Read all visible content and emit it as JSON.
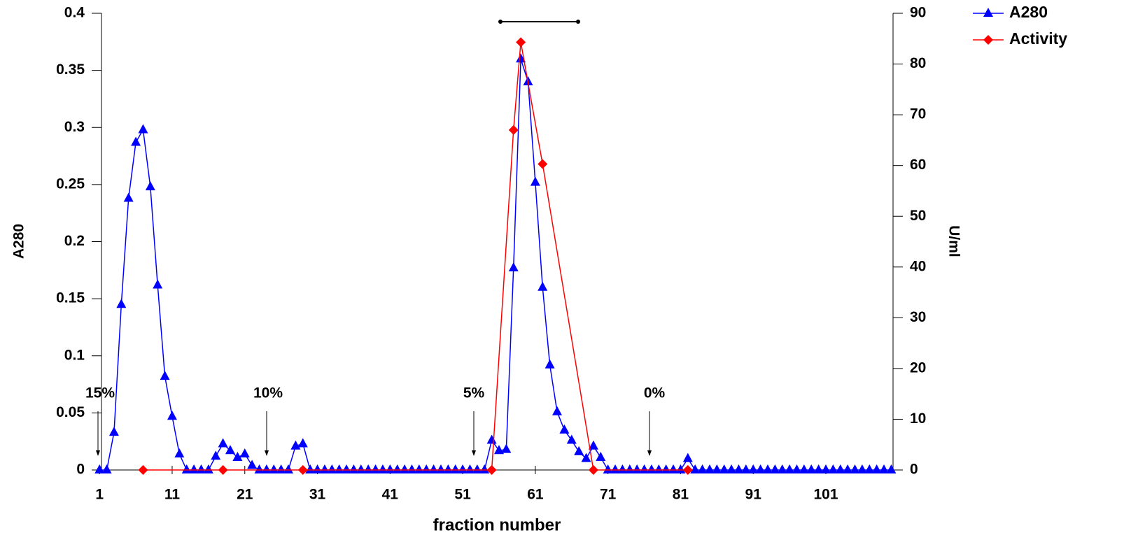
{
  "chart_data": {
    "type": "line",
    "xlabel": "fraction number",
    "ylabel": "A280",
    "y2label": "U/ml",
    "xlim": [
      0.5,
      110.25
    ],
    "xticks": [
      1,
      11,
      21,
      31,
      41,
      51,
      61,
      71,
      81,
      91,
      101
    ],
    "ylim": [
      0,
      0.4
    ],
    "yticks": [
      0,
      0.05,
      0.1,
      0.15,
      0.2,
      0.25,
      0.3,
      0.35,
      0.4
    ],
    "y2lim": [
      0,
      90
    ],
    "y2ticks": [
      0,
      10,
      20,
      30,
      40,
      50,
      60,
      70,
      80,
      90
    ],
    "legend": "top-right",
    "annotations": [
      "15%",
      "10%",
      "5%",
      "0%"
    ],
    "series": [
      {
        "name": "A280",
        "color": "#0000ff",
        "marker": "triangle",
        "x": [
          1,
          2,
          3,
          4,
          5,
          6,
          7,
          8,
          9,
          10,
          11,
          12,
          13,
          14,
          15,
          16,
          17,
          18,
          19,
          20,
          21,
          22,
          23,
          24,
          25,
          26,
          27,
          28,
          29,
          30,
          31,
          32,
          33,
          34,
          35,
          36,
          37,
          38,
          39,
          40,
          41,
          42,
          43,
          44,
          45,
          46,
          47,
          48,
          49,
          50,
          51,
          52,
          53,
          54,
          55,
          56,
          57,
          58,
          59,
          60,
          61,
          62,
          63,
          64,
          65,
          66,
          67,
          68,
          69,
          70,
          71,
          72,
          73,
          74,
          75,
          76,
          77,
          78,
          79,
          80,
          81,
          82,
          83,
          84,
          85,
          86,
          87,
          88,
          89,
          90,
          91,
          92,
          93,
          94,
          95,
          96,
          97,
          98,
          99,
          100,
          101,
          102,
          103,
          104,
          105,
          106,
          107,
          108,
          109,
          110
        ],
        "values": [
          0,
          0,
          0.033,
          0.145,
          0.238,
          0.287,
          0.298,
          0.248,
          0.162,
          0.082,
          0.047,
          0.014,
          0,
          0,
          0,
          0,
          0.012,
          0.023,
          0.017,
          0.011,
          0.014,
          0.004,
          0,
          0,
          0,
          0,
          0,
          0.021,
          0.023,
          0,
          0,
          0,
          0,
          0,
          0,
          0,
          0,
          0,
          0,
          0,
          0,
          0,
          0,
          0,
          0,
          0,
          0,
          0,
          0,
          0,
          0,
          0,
          0,
          0,
          0.026,
          0.017,
          0.018,
          0.177,
          0.36,
          0.34,
          0.252,
          0.16,
          0.092,
          0.051,
          0.035,
          0.026,
          0.016,
          0.01,
          0.021,
          0.011,
          0,
          0,
          0,
          0,
          0,
          0,
          0,
          0,
          0,
          0,
          0,
          0.01,
          0,
          0,
          0,
          0,
          0,
          0,
          0,
          0,
          0,
          0,
          0,
          0,
          0,
          0,
          0,
          0,
          0,
          0,
          0,
          0,
          0,
          0,
          0,
          0,
          0,
          0,
          0,
          0
        ]
      },
      {
        "name": "Activity",
        "color": "#ff0000",
        "marker": "diamond",
        "axis": "y2",
        "x": [
          7,
          18,
          29,
          55,
          58,
          59,
          62,
          69,
          82
        ],
        "values": [
          0,
          0,
          0,
          0,
          67,
          84.3,
          60.3,
          0,
          0
        ]
      }
    ]
  }
}
